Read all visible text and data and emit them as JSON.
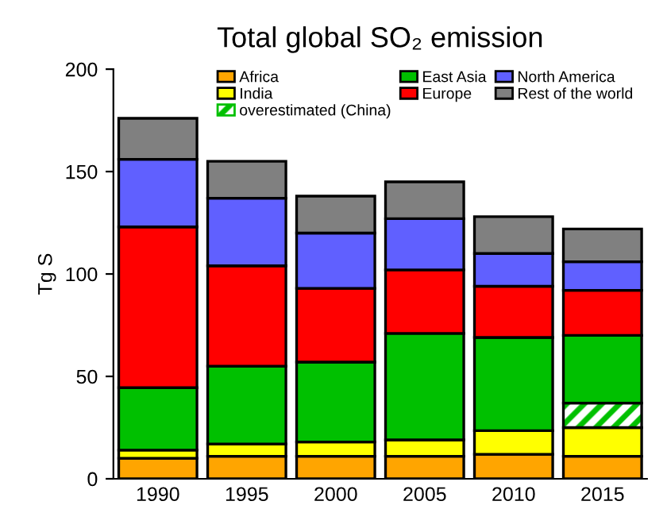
{
  "chart_data": {
    "type": "bar",
    "title": "Total global SO₂ emission",
    "ylabel": "Tg S",
    "categories": [
      "1990",
      "1995",
      "2000",
      "2005",
      "2010",
      "2015"
    ],
    "stacked": true,
    "ylim": [
      0,
      200
    ],
    "yticks": [
      0,
      50,
      100,
      150,
      200
    ],
    "grid": false,
    "legend": "top",
    "series": [
      {
        "name": "Africa",
        "color": "#ffa500",
        "values": [
          10,
          11,
          11,
          11,
          12,
          11
        ]
      },
      {
        "name": "India",
        "color": "#ffff00",
        "values": [
          4,
          6,
          7,
          8,
          11.5,
          14
        ]
      },
      {
        "name": "overestimated (China)",
        "color": "#00c000",
        "values": [
          null,
          null,
          null,
          null,
          null,
          12
        ]
      },
      {
        "name": "East Asia",
        "color": "#00c000",
        "values": [
          30.5,
          38,
          39,
          52,
          45.5,
          33
        ]
      },
      {
        "name": "Europe",
        "color": "#ff0000",
        "values": [
          78.5,
          49,
          36,
          31,
          25,
          22
        ]
      },
      {
        "name": "North America",
        "color": "#6060ff",
        "values": [
          33,
          33,
          27,
          25,
          16,
          14
        ]
      },
      {
        "name": "Rest of the world",
        "color": "#808080",
        "values": [
          20,
          18,
          18,
          18,
          18,
          16
        ]
      }
    ]
  }
}
